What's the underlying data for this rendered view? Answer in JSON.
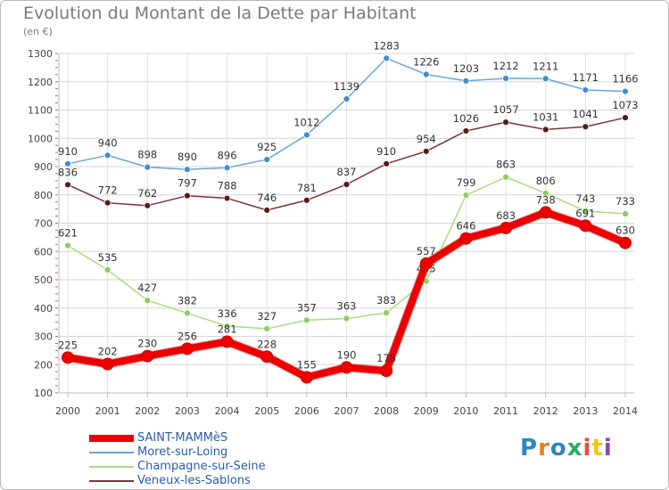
{
  "title": "Evolution du Montant de la Dette par Habitant",
  "subtitle": "(en €)",
  "logo": {
    "text": "Proxiti",
    "colors": [
      "#2e86c1",
      "#e67e22",
      "#2e86c1",
      "#27ae60",
      "#e74c3c",
      "#f1c40f",
      "#8e44ad"
    ]
  },
  "chart_data": {
    "type": "line",
    "title": "Evolution du Montant de la Dette par Habitant",
    "subtitle": "(en €)",
    "x": [
      "2000",
      "2001",
      "2002",
      "2003",
      "2004",
      "2005",
      "2006",
      "2007",
      "2008",
      "2009",
      "2010",
      "2011",
      "2012",
      "2013",
      "2014"
    ],
    "ylim": [
      100,
      1300
    ],
    "yticks": [
      100,
      200,
      300,
      400,
      500,
      600,
      700,
      800,
      900,
      1000,
      1100,
      1200,
      1300
    ],
    "grid": true,
    "legend_position": "bottom-left",
    "series": [
      {
        "name": "Moret-sur-Loing",
        "color": "#6aa6d6",
        "marker": "#3d8fd1",
        "width": 1.5,
        "values": [
          910,
          940,
          898,
          890,
          896,
          925,
          1012,
          1139,
          1283,
          1226,
          1203,
          1212,
          1211,
          1171,
          1166
        ],
        "labels": [
          "910",
          "940",
          "898",
          "890",
          "896",
          "925",
          "1012",
          "1139",
          "1283",
          "1226",
          "1203",
          "1212",
          "1211",
          "1171",
          "1166"
        ]
      },
      {
        "name": "Veneux-les-Sablons",
        "color": "#7a3535",
        "marker": "#5a1a1a",
        "width": 1.5,
        "values": [
          836,
          772,
          762,
          797,
          788,
          746,
          781,
          837,
          910,
          954,
          1026,
          1057,
          1031,
          1041,
          1073
        ],
        "labels": [
          "836",
          "772",
          "762",
          "797",
          "788",
          "746",
          "781",
          "837",
          "910",
          "954",
          "1026",
          "1057",
          "1031",
          "1041",
          "1073"
        ]
      },
      {
        "name": "Champagne-sur-Seine",
        "color": "#a6dd7e",
        "marker": "#8ccc5c",
        "width": 1.5,
        "values": [
          621,
          535,
          427,
          382,
          336,
          327,
          357,
          363,
          383,
          495,
          799,
          863,
          806,
          743,
          733
        ],
        "labels": [
          "621",
          "535",
          "427",
          "382",
          "336",
          "327",
          "357",
          "363",
          "383",
          "495",
          "799",
          "863",
          "806",
          "743",
          "733"
        ]
      },
      {
        "name": "SAINT-MAMMèS",
        "color": "#ee0000",
        "marker": "#ee0000",
        "width": 8,
        "values": [
          225,
          202,
          230,
          256,
          281,
          228,
          155,
          190,
          178,
          557,
          646,
          683,
          738,
          691,
          630
        ],
        "labels": [
          "225",
          "202",
          "230",
          "256",
          "281",
          "228",
          "155",
          "190",
          "178",
          "557",
          "646",
          "683",
          "738",
          "691",
          "630"
        ]
      }
    ]
  }
}
